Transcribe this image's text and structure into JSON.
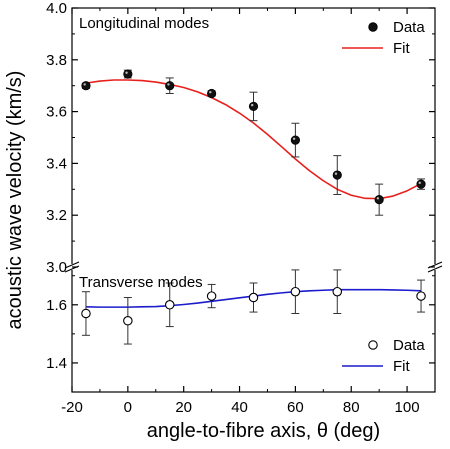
{
  "chart_data": {
    "type": "scatter",
    "xlabel": "angle-to-fibre axis, θ (deg)",
    "ylabel": "acoustic wave velocity (km/s)",
    "xlim": [
      -20,
      110
    ],
    "x_ticks": [
      "-20",
      "0",
      "20",
      "40",
      "60",
      "80",
      "100"
    ],
    "x_tick_values": [
      -20,
      0,
      20,
      40,
      60,
      80,
      100
    ],
    "axis_break": "y",
    "panels": [
      {
        "label": "Longitudinal modes",
        "ylim": [
          3.0,
          4.0
        ],
        "y_ticks": [
          "3.0",
          "3.2",
          "3.4",
          "3.6",
          "3.8",
          "4.0"
        ],
        "y_tick_values": [
          3.0,
          3.2,
          3.4,
          3.6,
          3.8,
          4.0
        ],
        "data_marker": "filled-circle",
        "fit_color": "#e8201c",
        "legend": {
          "data": "Data",
          "fit": "Fit"
        },
        "points": [
          {
            "x": -15,
            "y": 3.7,
            "err": 0.01
          },
          {
            "x": 0,
            "y": 3.745,
            "err": 0.015
          },
          {
            "x": 15,
            "y": 3.7,
            "err": 0.03
          },
          {
            "x": 30,
            "y": 3.67,
            "err": 0.01
          },
          {
            "x": 45,
            "y": 3.62,
            "err": 0.055
          },
          {
            "x": 60,
            "y": 3.49,
            "err": 0.065
          },
          {
            "x": 75,
            "y": 3.355,
            "err": 0.075
          },
          {
            "x": 90,
            "y": 3.26,
            "err": 0.06
          },
          {
            "x": 105,
            "y": 3.32,
            "err": 0.02
          }
        ],
        "fit": {
          "x": [
            -15,
            -10,
            -5,
            0,
            5,
            10,
            15,
            20,
            25,
            30,
            35,
            40,
            45,
            50,
            55,
            60,
            65,
            70,
            75,
            80,
            85,
            90,
            95,
            100,
            105
          ],
          "y": [
            3.71,
            3.718,
            3.722,
            3.722,
            3.72,
            3.714,
            3.705,
            3.693,
            3.676,
            3.654,
            3.627,
            3.594,
            3.556,
            3.512,
            3.465,
            3.417,
            3.372,
            3.333,
            3.3,
            3.277,
            3.265,
            3.264,
            3.274,
            3.294,
            3.322
          ]
        }
      },
      {
        "label": "Transverse modes",
        "ylim": [
          1.3,
          1.73
        ],
        "y_ticks": [
          "1.4",
          "1.6"
        ],
        "y_tick_values": [
          1.4,
          1.6
        ],
        "data_marker": "open-circle",
        "fit_color": "#1c1ccc",
        "legend": {
          "data": "Data",
          "fit": "Fit"
        },
        "points": [
          {
            "x": -15,
            "y": 1.57,
            "err": 0.075
          },
          {
            "x": 0,
            "y": 1.545,
            "err": 0.08
          },
          {
            "x": 15,
            "y": 1.6,
            "err": 0.075
          },
          {
            "x": 30,
            "y": 1.63,
            "err": 0.04
          },
          {
            "x": 45,
            "y": 1.625,
            "err": 0.05
          },
          {
            "x": 60,
            "y": 1.645,
            "err": 0.075
          },
          {
            "x": 75,
            "y": 1.645,
            "err": 0.075
          },
          {
            "x": 105,
            "y": 1.63,
            "err": 0.055
          }
        ],
        "fit": {
          "x": [
            -15,
            -10,
            -5,
            0,
            5,
            10,
            15,
            20,
            25,
            30,
            35,
            40,
            45,
            50,
            55,
            60,
            65,
            70,
            75,
            80,
            85,
            90,
            95,
            100,
            105
          ],
          "y": [
            1.593,
            1.592,
            1.592,
            1.592,
            1.593,
            1.594,
            1.597,
            1.601,
            1.606,
            1.612,
            1.618,
            1.624,
            1.63,
            1.636,
            1.641,
            1.645,
            1.648,
            1.65,
            1.652,
            1.652,
            1.652,
            1.652,
            1.651,
            1.65,
            1.648
          ]
        }
      }
    ]
  }
}
